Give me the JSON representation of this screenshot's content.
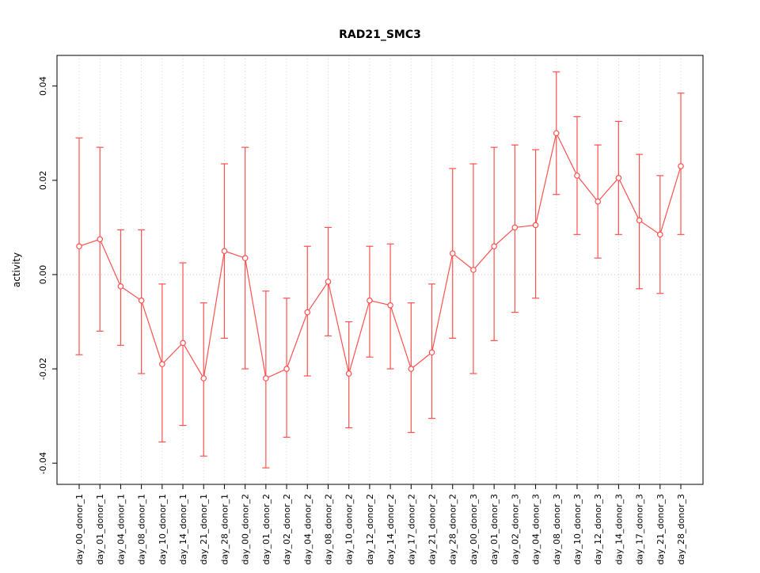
{
  "chart_data": {
    "type": "line",
    "title": "RAD21_SMC3",
    "xlabel": "",
    "ylabel": "activity",
    "ylim": [
      -0.0445,
      0.0465
    ],
    "yticks": [
      -0.04,
      -0.02,
      0.0,
      0.02,
      0.04
    ],
    "grid": "vertical-dotted-per-category, horizontal-dotted-at-zero",
    "legend": "none",
    "point_style": "open-circle-with-error-bars",
    "categories": [
      "day_00_donor_1",
      "day_01_donor_1",
      "day_04_donor_1",
      "day_08_donor_1",
      "day_10_donor_1",
      "day_14_donor_1",
      "day_21_donor_1",
      "day_28_donor_1",
      "day_00_donor_2",
      "day_01_donor_2",
      "day_02_donor_2",
      "day_04_donor_2",
      "day_08_donor_2",
      "day_10_donor_2",
      "day_12_donor_2",
      "day_14_donor_2",
      "day_17_donor_2",
      "day_21_donor_2",
      "day_28_donor_2",
      "day_00_donor_3",
      "day_01_donor_3",
      "day_02_donor_3",
      "day_04_donor_3",
      "day_08_donor_3",
      "day_10_donor_3",
      "day_12_donor_3",
      "day_14_donor_3",
      "day_17_donor_3",
      "day_21_donor_3",
      "day_28_donor_3"
    ],
    "series": [
      {
        "name": "activity",
        "values": [
          0.006,
          0.0075,
          -0.0025,
          -0.0055,
          -0.019,
          -0.0145,
          -0.022,
          0.005,
          0.0035,
          -0.022,
          -0.02,
          -0.008,
          -0.0015,
          -0.021,
          -0.0055,
          -0.0065,
          -0.02,
          -0.0165,
          0.0045,
          0.001,
          0.006,
          0.01,
          0.0105,
          0.03,
          0.021,
          0.0155,
          0.0205,
          0.0115,
          0.0085,
          0.023
        ],
        "lower": [
          -0.017,
          -0.012,
          -0.015,
          -0.021,
          -0.0355,
          -0.032,
          -0.0385,
          -0.0135,
          -0.02,
          -0.041,
          -0.0345,
          -0.0215,
          -0.013,
          -0.0325,
          -0.0175,
          -0.02,
          -0.0335,
          -0.0305,
          -0.0135,
          -0.021,
          -0.014,
          -0.008,
          -0.005,
          0.017,
          0.0085,
          0.0035,
          0.0085,
          -0.003,
          -0.004,
          0.0085
        ],
        "upper": [
          0.029,
          0.027,
          0.0095,
          0.0095,
          -0.002,
          0.0025,
          -0.006,
          0.0235,
          0.027,
          -0.0035,
          -0.005,
          0.006,
          0.01,
          -0.01,
          0.006,
          0.0065,
          -0.006,
          -0.002,
          0.0225,
          0.0235,
          0.027,
          0.0275,
          0.0265,
          0.043,
          0.0335,
          0.0275,
          0.0325,
          0.0255,
          0.021,
          0.0385
        ]
      }
    ],
    "colors": {
      "series": "#ff5050",
      "grid": "#d4d4d4",
      "zero_line": "#e0c0c0",
      "axis": "#000000",
      "background": "#ffffff"
    }
  }
}
